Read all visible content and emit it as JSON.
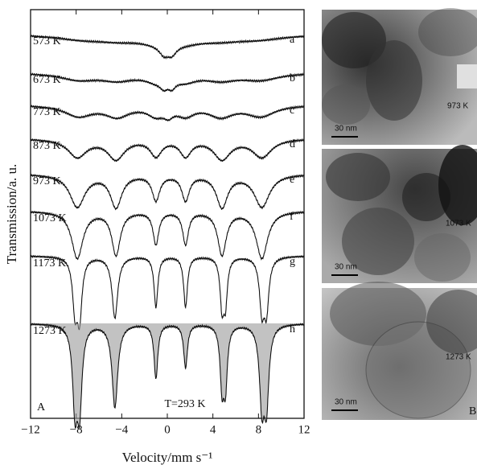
{
  "chart_data": {
    "type": "line",
    "x_label": "Velocity/mm s⁻¹",
    "y_label": "Transmission/a. u.",
    "panel_label": "A",
    "annotation": "T=293 K",
    "xlim": [
      -12,
      12
    ],
    "xticks": [
      {
        "value": -12,
        "label": "−12"
      },
      {
        "value": -8,
        "label": "−8"
      },
      {
        "value": -4,
        "label": "−4"
      },
      0,
      4,
      8,
      12
    ],
    "series": [
      {
        "name": "573 K",
        "label": "a",
        "color": "#111111",
        "peaks": [
          -7.5,
          -4.3,
          -0.9,
          -0.3,
          0.4,
          1.5,
          4.6,
          8
        ],
        "depths": [
          0.12,
          0.12,
          0.15,
          0.25,
          0.25,
          0.15,
          0.12,
          0.12
        ],
        "widths": [
          3,
          2.5,
          2,
          0.5,
          0.5,
          2,
          2.5,
          3
        ]
      },
      {
        "name": "673 K",
        "label": "b",
        "color": "#111111",
        "peaks": [
          -7.8,
          -4.4,
          -1,
          -0.3,
          0.4,
          1.6,
          4.7,
          8.2
        ],
        "depths": [
          0.18,
          0.18,
          0.18,
          0.2,
          0.22,
          0.18,
          0.18,
          0.18
        ],
        "widths": [
          2,
          1.8,
          1.2,
          0.4,
          0.4,
          1.2,
          1.8,
          2
        ]
      },
      {
        "name": "773 K",
        "label": "c",
        "color": "#111111",
        "peaks": [
          -7.8,
          -4.4,
          -1,
          0.1,
          1.6,
          4.7,
          8.2
        ],
        "depths": [
          0.3,
          0.3,
          0.25,
          0.2,
          0.25,
          0.3,
          0.3
        ],
        "widths": [
          1.5,
          1.3,
          0.9,
          0.5,
          0.9,
          1.3,
          1.5
        ]
      },
      {
        "name": "873 K",
        "label": "d",
        "color": "#111111",
        "peaks": [
          -7.9,
          -4.5,
          -1,
          1.6,
          4.8,
          8.3
        ],
        "depths": [
          0.5,
          0.55,
          0.45,
          0.45,
          0.55,
          0.5
        ],
        "widths": [
          1,
          0.9,
          0.6,
          0.6,
          0.9,
          1
        ]
      },
      {
        "name": "973 K",
        "label": "e",
        "color": "#111111",
        "peaks": [
          -7.9,
          -4.5,
          -1,
          1.6,
          4.8,
          8.3
        ],
        "depths": [
          0.9,
          0.9,
          0.7,
          0.7,
          0.9,
          0.9
        ],
        "widths": [
          0.8,
          0.6,
          0.4,
          0.4,
          0.6,
          0.8
        ]
      },
      {
        "name": "1073 K",
        "label": "f",
        "color": "#111111",
        "peaks": [
          -7.9,
          -4.5,
          -1,
          1.6,
          4.8,
          8.3
        ],
        "depths": [
          1.3,
          1.2,
          0.9,
          0.9,
          1.2,
          1.3
        ],
        "widths": [
          0.6,
          0.45,
          0.3,
          0.3,
          0.45,
          0.6
        ]
      },
      {
        "name": "1173 K",
        "label": "g",
        "color": "#111111",
        "peaks": [
          -8.1,
          -7.7,
          -4.6,
          -1,
          1.6,
          4.8,
          5.1,
          8.3,
          8.7
        ],
        "depths": [
          1.4,
          1.6,
          1.7,
          1.4,
          1.4,
          1.3,
          1.2,
          1.4,
          1.4
        ],
        "widths": [
          0.25,
          0.25,
          0.3,
          0.2,
          0.2,
          0.2,
          0.2,
          0.25,
          0.25
        ]
      },
      {
        "name": "1273 K",
        "label": "h",
        "color": "#111111",
        "peaks": [
          -8.1,
          -7.7,
          -4.6,
          -1,
          1.6,
          4.8,
          5.1,
          8.3,
          8.7
        ],
        "depths": [
          2.2,
          2.2,
          2.3,
          1.5,
          1.2,
          1.6,
          1.6,
          2.1,
          2.1
        ],
        "widths": [
          0.25,
          0.25,
          0.3,
          0.2,
          0.2,
          0.2,
          0.2,
          0.25,
          0.25
        ]
      }
    ]
  },
  "panel_b": {
    "label": "B",
    "images": [
      {
        "temperature": "973 K",
        "scale_bar": "30 nm"
      },
      {
        "temperature": "1073 K",
        "scale_bar": "30 nm"
      },
      {
        "temperature": "1273 K",
        "scale_bar": "30 nm"
      }
    ]
  }
}
